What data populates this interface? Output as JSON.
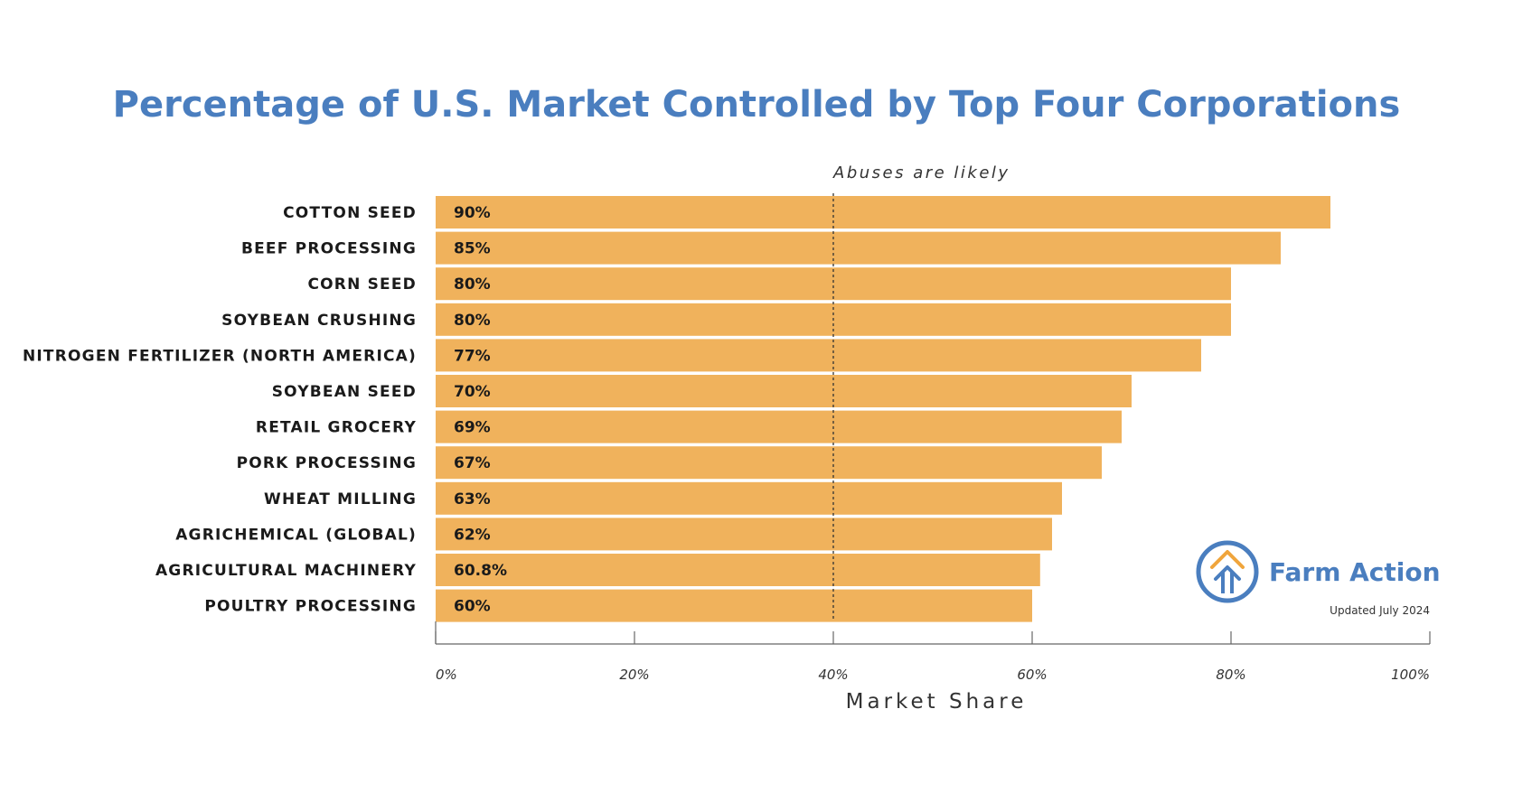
{
  "chart_data": {
    "type": "bar",
    "orientation": "horizontal",
    "title": "Percentage of U.S. Market Controlled by Top Four Corporations",
    "xlabel": "Market Share",
    "ylabel": "",
    "xlim": [
      0,
      100
    ],
    "x_ticks": [
      "0%",
      "20%",
      "40%",
      "60%",
      "80%",
      "100%"
    ],
    "categories": [
      "COTTON SEED",
      "BEEF PROCESSING",
      "CORN SEED",
      "SOYBEAN CRUSHING",
      "NITROGEN FERTILIZER (NORTH AMERICA)",
      "SOYBEAN SEED",
      "RETAIL GROCERY",
      "PORK PROCESSING",
      "WHEAT MILLING",
      "AGRICHEMICAL (GLOBAL)",
      "AGRICULTURAL MACHINERY",
      "POULTRY PROCESSING"
    ],
    "values": [
      90,
      85,
      80,
      80,
      77,
      70,
      69,
      67,
      63,
      62,
      60.8,
      60
    ],
    "value_labels": [
      "90%",
      "85%",
      "80%",
      "80%",
      "77%",
      "70%",
      "69%",
      "67%",
      "63%",
      "62%",
      "60.8%",
      "60%"
    ],
    "reference_line": {
      "x": 40,
      "label": "Abuses are likely",
      "style": "dashed"
    },
    "grid": false,
    "colors": {
      "bar": "#f0b25c",
      "title": "#4a7ebf",
      "text": "#1a1a1a"
    }
  },
  "branding": {
    "name": "Farm Action",
    "updated": "Updated July 2024",
    "logo_icon": "arrow-up-circle-icon",
    "colors": {
      "logo_blue": "#4a7ebf",
      "logo_orange": "#f0a53c"
    }
  }
}
